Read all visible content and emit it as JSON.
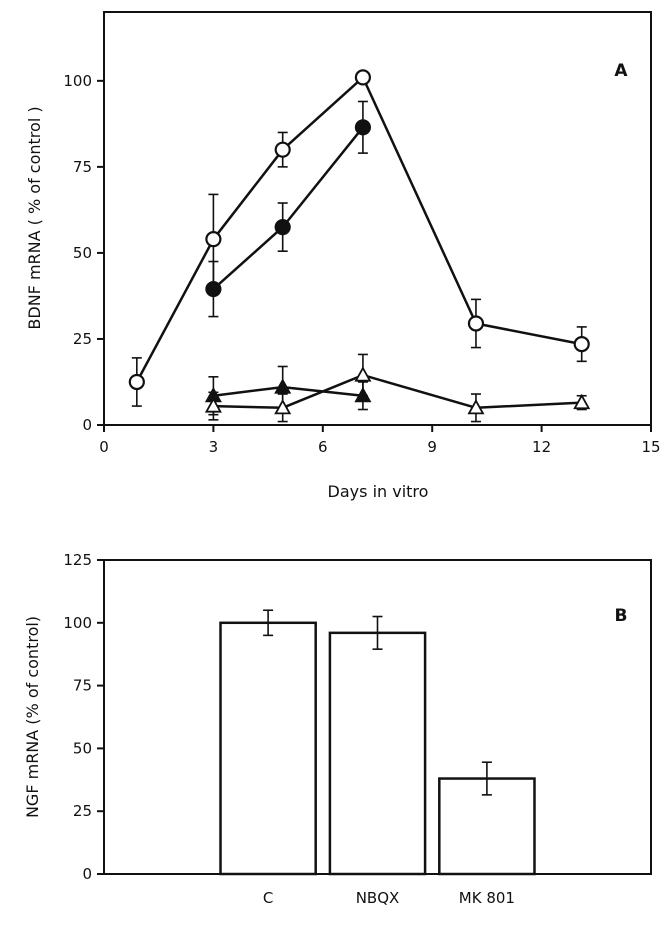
{
  "chart_data": [
    {
      "type": "line",
      "panel_label": "A",
      "xlabel": "Days in vitro",
      "ylabel": "BDNF mRNA  ( % of  control )",
      "xlim": [
        0,
        15
      ],
      "ylim": [
        0,
        120
      ],
      "xticks": [
        0,
        3,
        6,
        9,
        12,
        15
      ],
      "yticks": [
        0,
        25,
        50,
        75,
        100
      ],
      "grid": false,
      "series": [
        {
          "marker": "open-circle",
          "x": [
            0.9,
            3.0,
            4.9,
            7.1,
            10.2,
            13.1
          ],
          "y": [
            12.5,
            54,
            80,
            101,
            29.5,
            23.5
          ],
          "err": [
            7,
            13,
            5,
            1.5,
            7,
            5
          ]
        },
        {
          "marker": "filled-circle",
          "x": [
            3.0,
            4.9,
            7.1
          ],
          "y": [
            39.5,
            57.5,
            86.5
          ],
          "err": [
            8,
            7,
            7.5
          ]
        },
        {
          "marker": "filled-triangle",
          "x": [
            3.0,
            4.9,
            7.1
          ],
          "y": [
            8.5,
            11,
            8.5
          ],
          "err": [
            5.5,
            6,
            4
          ]
        },
        {
          "marker": "open-triangle",
          "x": [
            3.0,
            4.9,
            7.1,
            10.2,
            13.1
          ],
          "y": [
            5.5,
            5,
            14.5,
            5,
            6.5
          ],
          "err": [
            4,
            4,
            6,
            4,
            2
          ]
        }
      ]
    },
    {
      "type": "bar",
      "panel_label": "B",
      "ylabel": "NGF mRNA  (% of  control)",
      "categories": [
        "C",
        "NBQX",
        "MK 801"
      ],
      "values": [
        100,
        96,
        38
      ],
      "err": [
        5,
        6.5,
        6.5
      ],
      "ylim": [
        0,
        125
      ],
      "yticks": [
        0,
        25,
        50,
        75,
        100,
        125
      ],
      "grid": false
    }
  ]
}
